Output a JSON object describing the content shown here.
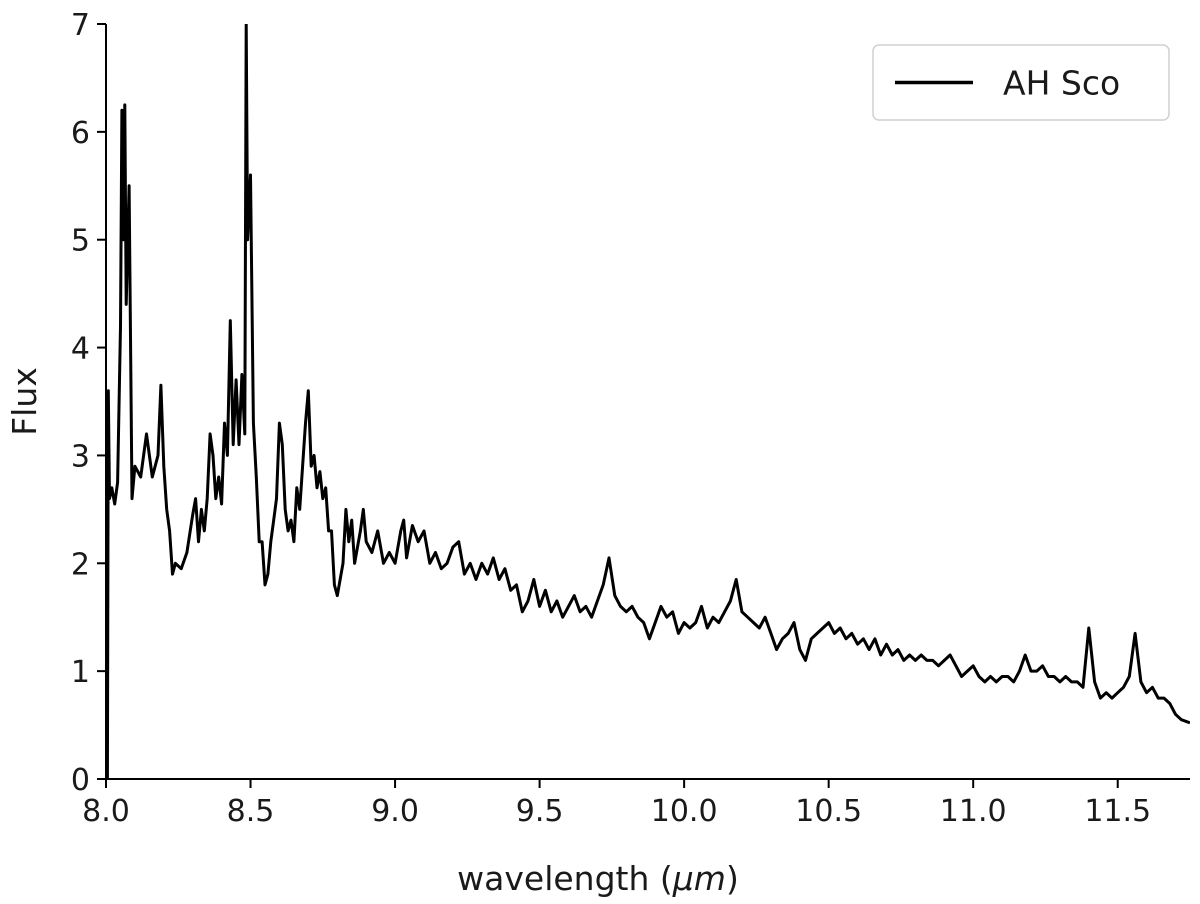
{
  "chart_data": {
    "type": "line",
    "xlabel_text": "wavelength (",
    "xlabel_unit": "μm",
    "xlabel_close": ")",
    "ylabel": "Flux",
    "xlim": [
      8.0,
      11.75
    ],
    "ylim": [
      0,
      7
    ],
    "xticks": [
      8.0,
      8.5,
      9.0,
      9.5,
      10.0,
      10.5,
      11.0,
      11.5
    ],
    "xtick_labels": [
      "8.0",
      "8.5",
      "9.0",
      "9.5",
      "10.0",
      "10.5",
      "11.0",
      "11.5"
    ],
    "yticks": [
      0,
      1,
      2,
      3,
      4,
      5,
      6,
      7
    ],
    "ytick_labels": [
      "0",
      "1",
      "2",
      "3",
      "4",
      "5",
      "6",
      "7"
    ],
    "grid": false,
    "legend_position": "top-right",
    "series": [
      {
        "name": "AH Sco",
        "color": "#000000",
        "points": [
          [
            8.0,
            3.6
          ],
          [
            8.005,
            0.0
          ],
          [
            8.008,
            3.6
          ],
          [
            8.012,
            2.6
          ],
          [
            8.02,
            2.7
          ],
          [
            8.03,
            2.55
          ],
          [
            8.04,
            2.75
          ],
          [
            8.05,
            4.2
          ],
          [
            8.055,
            6.2
          ],
          [
            8.06,
            5.0
          ],
          [
            8.065,
            6.25
          ],
          [
            8.07,
            4.4
          ],
          [
            8.08,
            5.5
          ],
          [
            8.09,
            2.6
          ],
          [
            8.1,
            2.9
          ],
          [
            8.12,
            2.8
          ],
          [
            8.14,
            3.2
          ],
          [
            8.16,
            2.8
          ],
          [
            8.18,
            3.0
          ],
          [
            8.19,
            3.65
          ],
          [
            8.2,
            2.9
          ],
          [
            8.21,
            2.5
          ],
          [
            8.22,
            2.3
          ],
          [
            8.23,
            1.9
          ],
          [
            8.24,
            2.0
          ],
          [
            8.26,
            1.95
          ],
          [
            8.28,
            2.1
          ],
          [
            8.3,
            2.45
          ],
          [
            8.31,
            2.6
          ],
          [
            8.32,
            2.2
          ],
          [
            8.33,
            2.5
          ],
          [
            8.34,
            2.3
          ],
          [
            8.35,
            2.6
          ],
          [
            8.36,
            3.2
          ],
          [
            8.37,
            3.0
          ],
          [
            8.38,
            2.6
          ],
          [
            8.39,
            2.8
          ],
          [
            8.4,
            2.55
          ],
          [
            8.41,
            3.3
          ],
          [
            8.42,
            3.0
          ],
          [
            8.43,
            4.25
          ],
          [
            8.44,
            3.1
          ],
          [
            8.45,
            3.7
          ],
          [
            8.46,
            3.1
          ],
          [
            8.47,
            3.75
          ],
          [
            8.48,
            3.2
          ],
          [
            8.485,
            7.0
          ],
          [
            8.49,
            5.0
          ],
          [
            8.5,
            5.6
          ],
          [
            8.51,
            3.3
          ],
          [
            8.52,
            2.8
          ],
          [
            8.53,
            2.2
          ],
          [
            8.54,
            2.2
          ],
          [
            8.55,
            1.8
          ],
          [
            8.56,
            1.9
          ],
          [
            8.57,
            2.2
          ],
          [
            8.58,
            2.4
          ],
          [
            8.59,
            2.6
          ],
          [
            8.6,
            3.3
          ],
          [
            8.61,
            3.1
          ],
          [
            8.62,
            2.5
          ],
          [
            8.63,
            2.3
          ],
          [
            8.64,
            2.4
          ],
          [
            8.65,
            2.2
          ],
          [
            8.66,
            2.7
          ],
          [
            8.67,
            2.5
          ],
          [
            8.68,
            2.9
          ],
          [
            8.69,
            3.3
          ],
          [
            8.7,
            3.6
          ],
          [
            8.71,
            2.9
          ],
          [
            8.72,
            3.0
          ],
          [
            8.73,
            2.7
          ],
          [
            8.74,
            2.85
          ],
          [
            8.75,
            2.6
          ],
          [
            8.76,
            2.7
          ],
          [
            8.77,
            2.3
          ],
          [
            8.78,
            2.3
          ],
          [
            8.79,
            1.8
          ],
          [
            8.8,
            1.7
          ],
          [
            8.82,
            2.0
          ],
          [
            8.83,
            2.5
          ],
          [
            8.84,
            2.2
          ],
          [
            8.85,
            2.4
          ],
          [
            8.86,
            2.0
          ],
          [
            8.88,
            2.3
          ],
          [
            8.89,
            2.5
          ],
          [
            8.9,
            2.2
          ],
          [
            8.92,
            2.1
          ],
          [
            8.94,
            2.3
          ],
          [
            8.96,
            2.0
          ],
          [
            8.98,
            2.1
          ],
          [
            9.0,
            2.0
          ],
          [
            9.02,
            2.3
          ],
          [
            9.03,
            2.4
          ],
          [
            9.04,
            2.05
          ],
          [
            9.06,
            2.35
          ],
          [
            9.08,
            2.2
          ],
          [
            9.1,
            2.3
          ],
          [
            9.12,
            2.0
          ],
          [
            9.14,
            2.1
          ],
          [
            9.16,
            1.95
          ],
          [
            9.18,
            2.0
          ],
          [
            9.2,
            2.15
          ],
          [
            9.22,
            2.2
          ],
          [
            9.24,
            1.9
          ],
          [
            9.26,
            2.0
          ],
          [
            9.28,
            1.85
          ],
          [
            9.3,
            2.0
          ],
          [
            9.32,
            1.9
          ],
          [
            9.34,
            2.05
          ],
          [
            9.36,
            1.85
          ],
          [
            9.38,
            1.95
          ],
          [
            9.4,
            1.75
          ],
          [
            9.42,
            1.8
          ],
          [
            9.44,
            1.55
          ],
          [
            9.46,
            1.65
          ],
          [
            9.48,
            1.85
          ],
          [
            9.5,
            1.6
          ],
          [
            9.52,
            1.75
          ],
          [
            9.54,
            1.55
          ],
          [
            9.56,
            1.65
          ],
          [
            9.58,
            1.5
          ],
          [
            9.6,
            1.6
          ],
          [
            9.62,
            1.7
          ],
          [
            9.64,
            1.55
          ],
          [
            9.66,
            1.6
          ],
          [
            9.68,
            1.5
          ],
          [
            9.7,
            1.65
          ],
          [
            9.72,
            1.8
          ],
          [
            9.74,
            2.05
          ],
          [
            9.76,
            1.7
          ],
          [
            9.78,
            1.6
          ],
          [
            9.8,
            1.55
          ],
          [
            9.82,
            1.6
          ],
          [
            9.84,
            1.5
          ],
          [
            9.86,
            1.45
          ],
          [
            9.88,
            1.3
          ],
          [
            9.9,
            1.45
          ],
          [
            9.92,
            1.6
          ],
          [
            9.94,
            1.5
          ],
          [
            9.96,
            1.55
          ],
          [
            9.98,
            1.35
          ],
          [
            10.0,
            1.45
          ],
          [
            10.02,
            1.4
          ],
          [
            10.04,
            1.45
          ],
          [
            10.06,
            1.6
          ],
          [
            10.08,
            1.4
          ],
          [
            10.1,
            1.5
          ],
          [
            10.12,
            1.45
          ],
          [
            10.14,
            1.55
          ],
          [
            10.16,
            1.65
          ],
          [
            10.18,
            1.85
          ],
          [
            10.2,
            1.55
          ],
          [
            10.22,
            1.5
          ],
          [
            10.24,
            1.45
          ],
          [
            10.26,
            1.4
          ],
          [
            10.28,
            1.5
          ],
          [
            10.3,
            1.35
          ],
          [
            10.32,
            1.2
          ],
          [
            10.34,
            1.3
          ],
          [
            10.36,
            1.35
          ],
          [
            10.38,
            1.45
          ],
          [
            10.4,
            1.2
          ],
          [
            10.42,
            1.1
          ],
          [
            10.44,
            1.3
          ],
          [
            10.46,
            1.35
          ],
          [
            10.48,
            1.4
          ],
          [
            10.5,
            1.45
          ],
          [
            10.52,
            1.35
          ],
          [
            10.54,
            1.4
          ],
          [
            10.56,
            1.3
          ],
          [
            10.58,
            1.35
          ],
          [
            10.6,
            1.25
          ],
          [
            10.62,
            1.3
          ],
          [
            10.64,
            1.2
          ],
          [
            10.66,
            1.3
          ],
          [
            10.68,
            1.15
          ],
          [
            10.7,
            1.25
          ],
          [
            10.72,
            1.15
          ],
          [
            10.74,
            1.2
          ],
          [
            10.76,
            1.1
          ],
          [
            10.78,
            1.15
          ],
          [
            10.8,
            1.1
          ],
          [
            10.82,
            1.15
          ],
          [
            10.84,
            1.1
          ],
          [
            10.86,
            1.1
          ],
          [
            10.88,
            1.05
          ],
          [
            10.9,
            1.1
          ],
          [
            10.92,
            1.15
          ],
          [
            10.94,
            1.05
          ],
          [
            10.96,
            0.95
          ],
          [
            10.98,
            1.0
          ],
          [
            11.0,
            1.05
          ],
          [
            11.02,
            0.95
          ],
          [
            11.04,
            0.9
          ],
          [
            11.06,
            0.95
          ],
          [
            11.08,
            0.9
          ],
          [
            11.1,
            0.95
          ],
          [
            11.12,
            0.95
          ],
          [
            11.14,
            0.9
          ],
          [
            11.16,
            1.0
          ],
          [
            11.18,
            1.15
          ],
          [
            11.2,
            1.0
          ],
          [
            11.22,
            1.0
          ],
          [
            11.24,
            1.05
          ],
          [
            11.26,
            0.95
          ],
          [
            11.28,
            0.95
          ],
          [
            11.3,
            0.9
          ],
          [
            11.32,
            0.95
          ],
          [
            11.34,
            0.9
          ],
          [
            11.36,
            0.9
          ],
          [
            11.38,
            0.85
          ],
          [
            11.4,
            1.4
          ],
          [
            11.42,
            0.9
          ],
          [
            11.44,
            0.75
          ],
          [
            11.46,
            0.8
          ],
          [
            11.48,
            0.75
          ],
          [
            11.5,
            0.8
          ],
          [
            11.52,
            0.85
          ],
          [
            11.54,
            0.95
          ],
          [
            11.56,
            1.35
          ],
          [
            11.58,
            0.9
          ],
          [
            11.6,
            0.8
          ],
          [
            11.62,
            0.85
          ],
          [
            11.64,
            0.75
          ],
          [
            11.66,
            0.75
          ],
          [
            11.68,
            0.7
          ],
          [
            11.7,
            0.6
          ],
          [
            11.72,
            0.55
          ],
          [
            11.75,
            0.52
          ]
        ]
      }
    ]
  }
}
